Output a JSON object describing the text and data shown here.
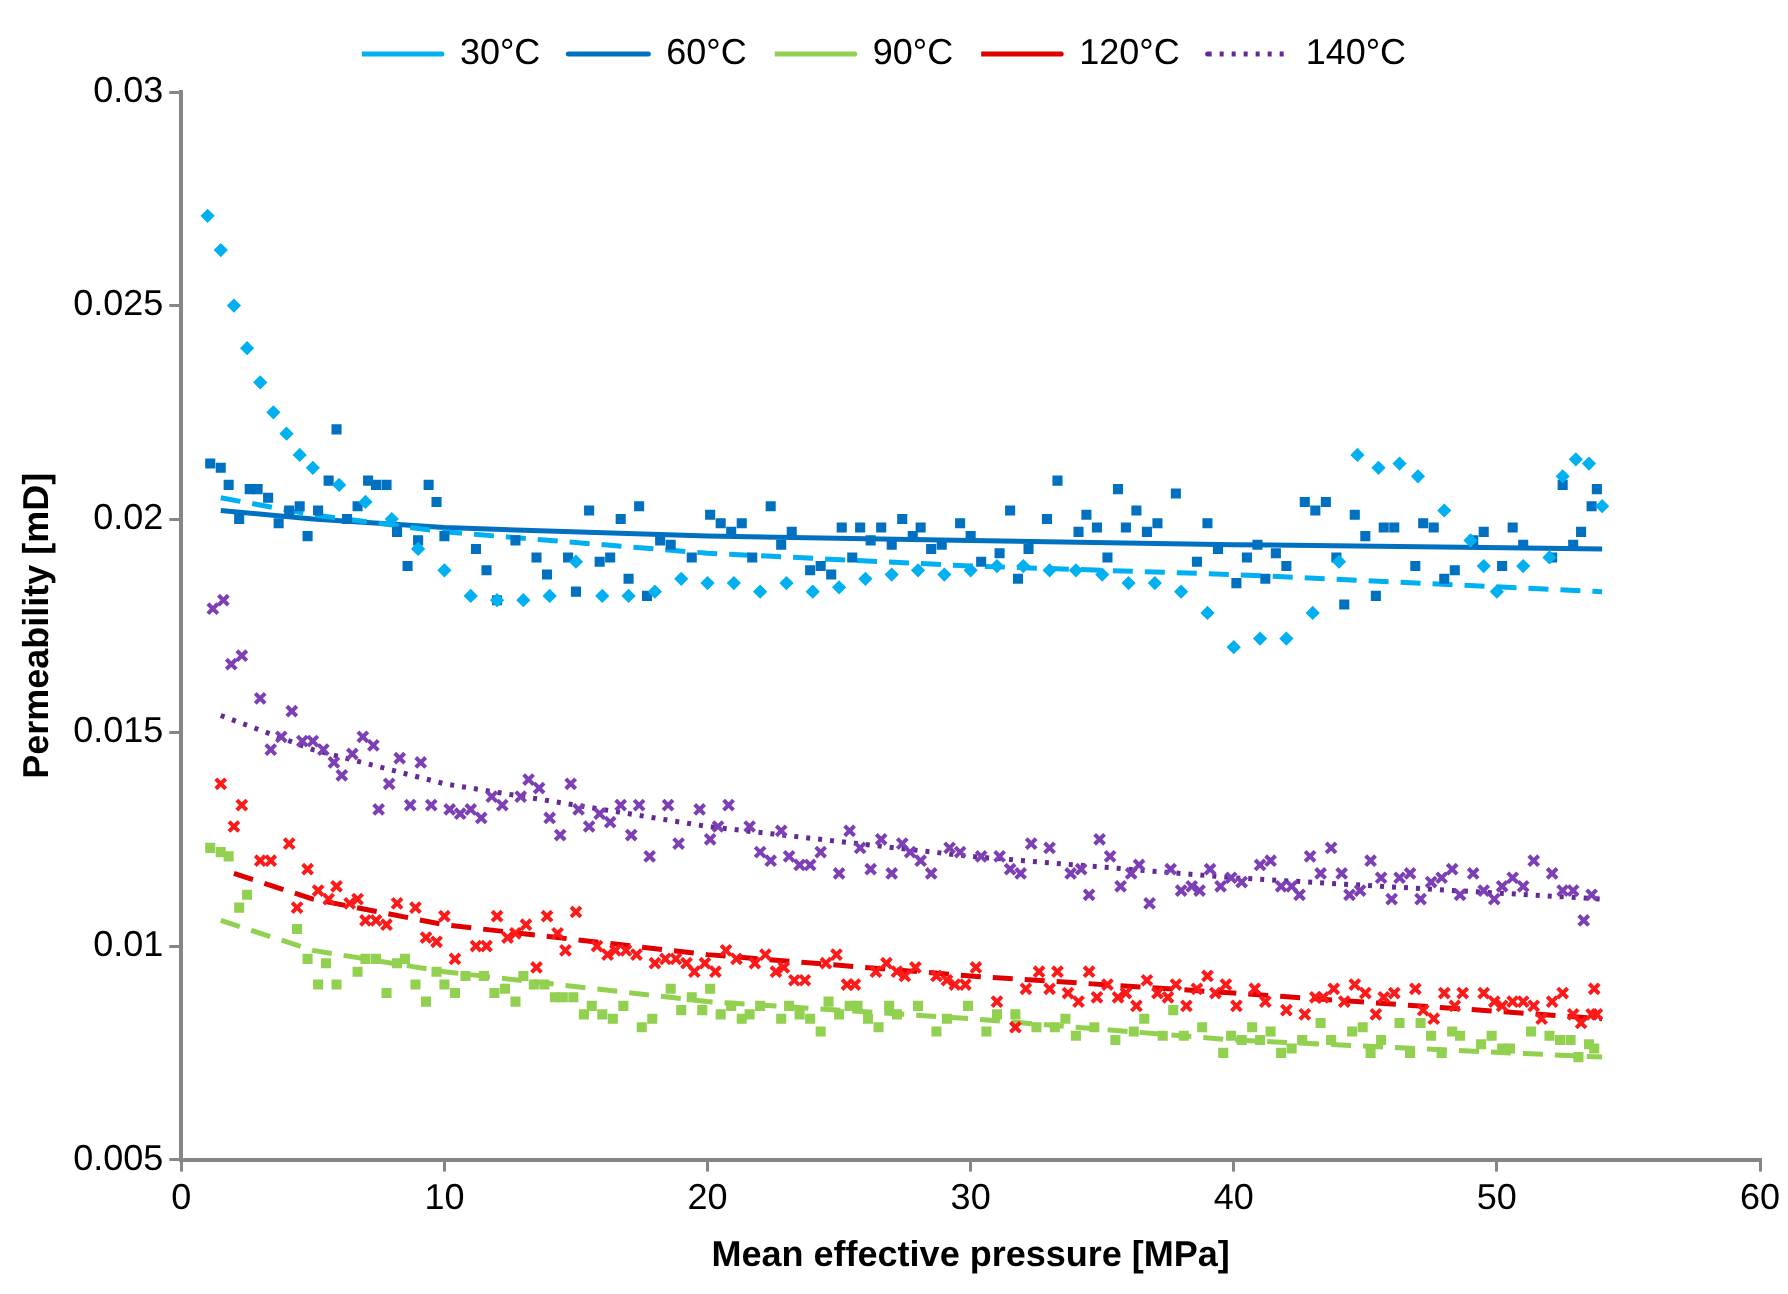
{
  "chart_data": {
    "type": "scatter",
    "xlabel": "Mean effective pressure [MPa]",
    "ylabel": "Permeability [mD]",
    "xlim": [
      0,
      60
    ],
    "xticks": [
      0,
      10,
      20,
      30,
      40,
      50,
      60
    ],
    "ylim": [
      0.005,
      0.03
    ],
    "yticks": [
      0.005,
      0.01,
      0.015,
      0.02,
      0.025,
      0.03
    ],
    "legend": "top",
    "series": [
      {
        "type": "scatter",
        "color": "#00b0f0",
        "marker": "diamond",
        "x": [
          1,
          1.5,
          2,
          2.5,
          3,
          3.5,
          4,
          4.5,
          5,
          6,
          7,
          8,
          9,
          10,
          11,
          12,
          13,
          14,
          15,
          16,
          17,
          18,
          19,
          20,
          21,
          22,
          23,
          24,
          25,
          26,
          27,
          28,
          29,
          30,
          31,
          32,
          33,
          34,
          35,
          36,
          37,
          38,
          39,
          40,
          41,
          42,
          43,
          44,
          44.7,
          45.5,
          46.3,
          47,
          48,
          49,
          49.5,
          50,
          51,
          52,
          52.5,
          53,
          53.5,
          54
        ],
        "values": [
          0.0271,
          0.0263,
          0.025,
          0.024,
          0.0232,
          0.0225,
          0.022,
          0.0215,
          0.0212,
          0.0208,
          0.0204,
          0.02,
          0.0193,
          0.0188,
          0.0182,
          0.0181,
          0.0181,
          0.0182,
          0.019,
          0.0182,
          0.0182,
          0.0183,
          0.0186,
          0.0185,
          0.0185,
          0.0183,
          0.0185,
          0.0183,
          0.0184,
          0.0186,
          0.0187,
          0.0188,
          0.0187,
          0.0188,
          0.0189,
          0.0189,
          0.0188,
          0.0188,
          0.0187,
          0.0185,
          0.0185,
          0.0183,
          0.0178,
          0.017,
          0.0172,
          0.0172,
          0.0178,
          0.019,
          0.0215,
          0.0212,
          0.0213,
          0.021,
          0.0202,
          0.0195,
          0.0189,
          0.0183,
          0.0189,
          0.0191,
          0.021,
          0.0214,
          0.0213,
          0.0203
        ]
      },
      {
        "type": "scatter",
        "color": "#0070c0",
        "marker": "square",
        "x": [
          1.1,
          1.5,
          1.8,
          2.2,
          2.6,
          2.9,
          3.3,
          3.7,
          4.1,
          4.5,
          4.8,
          5.2,
          5.6,
          5.9,
          6.3,
          6.7,
          7.1,
          7.4,
          7.8,
          8.2,
          8.6,
          9,
          9.4,
          9.7,
          10,
          11.2,
          11.6,
          12,
          12.7,
          13.5,
          13.9,
          14.7,
          15,
          15.5,
          15.9,
          16.3,
          16.7,
          17,
          17.4,
          17.7,
          18.2,
          18.6,
          19.4,
          20.1,
          20.5,
          20.9,
          21.3,
          21.7,
          22.4,
          22.8,
          23.2,
          23.9,
          24.3,
          24.7,
          25.1,
          25.5,
          25.8,
          26.2,
          26.6,
          27,
          27.4,
          27.8,
          28.1,
          28.5,
          28.9,
          29.6,
          30,
          30.4,
          31.1,
          31.5,
          31.8,
          32.2,
          32.9,
          33.3,
          34.1,
          34.4,
          34.8,
          35.2,
          35.6,
          35.9,
          36.3,
          36.7,
          37.1,
          37.8,
          38.6,
          39,
          39.4,
          40.1,
          40.5,
          40.9,
          41.2,
          41.6,
          42,
          42.7,
          43.1,
          43.5,
          43.9,
          44.2,
          44.6,
          45,
          45.4,
          45.7,
          46.1,
          46.9,
          47.2,
          47.6,
          48,
          48.4,
          49.1,
          49.5,
          50.2,
          50.6,
          51,
          52.1,
          52.5,
          52.9,
          53.2,
          53.6,
          53.8
        ],
        "values": [
          0.0213,
          0.0212,
          0.0208,
          0.02,
          0.0207,
          0.0207,
          0.0205,
          0.0199,
          0.0202,
          0.0203,
          0.0196,
          0.0202,
          0.0209,
          0.0221,
          0.02,
          0.0203,
          0.0209,
          0.0208,
          0.0208,
          0.0197,
          0.0189,
          0.0195,
          0.0208,
          0.0204,
          0.0196,
          0.0193,
          0.0188,
          0.0181,
          0.0195,
          0.0191,
          0.0187,
          0.0191,
          0.0183,
          0.0202,
          0.019,
          0.0191,
          0.02,
          0.0186,
          0.0203,
          0.0182,
          0.0195,
          0.0194,
          0.0191,
          0.0201,
          0.0199,
          0.0197,
          0.0199,
          0.0191,
          0.0203,
          0.0194,
          0.0197,
          0.0188,
          0.0189,
          0.0187,
          0.0198,
          0.0191,
          0.0198,
          0.0195,
          0.0198,
          0.0194,
          0.02,
          0.0196,
          0.0198,
          0.0193,
          0.0194,
          0.0199,
          0.0196,
          0.019,
          0.0192,
          0.0202,
          0.0186,
          0.0193,
          0.02,
          0.0209,
          0.0197,
          0.0201,
          0.0198,
          0.0191,
          0.0207,
          0.0198,
          0.0202,
          0.0197,
          0.0199,
          0.0206,
          0.019,
          0.0199,
          0.0193,
          0.0185,
          0.0191,
          0.0194,
          0.0186,
          0.0192,
          0.0189,
          0.0204,
          0.0202,
          0.0204,
          0.0191,
          0.018,
          0.0201,
          0.0196,
          0.0182,
          0.0198,
          0.0198,
          0.0189,
          0.0199,
          0.0198,
          0.0186,
          0.0188,
          0.0195,
          0.0197,
          0.0189,
          0.0198,
          0.0194,
          0.0191,
          0.0208,
          0.0194,
          0.0197,
          0.0203,
          0.0207
        ]
      },
      {
        "type": "scatter",
        "color": "#92d050",
        "marker": "square",
        "x": [
          1.1,
          1.5,
          1.8,
          2.2,
          2.5,
          4.4,
          4.8,
          5.2,
          5.5,
          5.9,
          6.7,
          7,
          7.4,
          7.8,
          8.2,
          8.5,
          8.9,
          9.3,
          9.7,
          10,
          10.4,
          10.8,
          11.5,
          11.9,
          12.3,
          12.7,
          13,
          13.4,
          13.8,
          14.2,
          14.5,
          14.9,
          15.3,
          15.6,
          16,
          16.4,
          16.8,
          17.5,
          17.9,
          18.6,
          19,
          19.4,
          19.8,
          20.1,
          20.5,
          20.9,
          21.3,
          21.6,
          22,
          22.8,
          23.1,
          23.5,
          23.9,
          24.3,
          24.6,
          25,
          25.4,
          25.7,
          26.1,
          26.5,
          26.9,
          27.2,
          28,
          28.7,
          29.1,
          29.9,
          30.6,
          31,
          31.7,
          32.5,
          33.2,
          33.6,
          34,
          34.7,
          35.5,
          36.2,
          36.6,
          37.3,
          37.7,
          38.1,
          38.8,
          39.6,
          39.9,
          40.3,
          40.7,
          41,
          41.4,
          41.8,
          42.2,
          42.6,
          43.3,
          43.7,
          44.5,
          44.9,
          45.2,
          45.6,
          46.3,
          46.7,
          47.1,
          47.5,
          47.9,
          48.3,
          48.6,
          49.4,
          49.8,
          50.2,
          50.5,
          51.3,
          52,
          52.4,
          52.8,
          53.1,
          53.5,
          53.7
        ],
        "values": [
          0.0123,
          0.0122,
          0.0121,
          0.0109,
          0.0112,
          0.0104,
          0.0097,
          0.0091,
          0.0096,
          0.0091,
          0.0094,
          0.0097,
          0.0097,
          0.0089,
          0.0096,
          0.0097,
          0.0091,
          0.0087,
          0.0094,
          0.0091,
          0.0089,
          0.0093,
          0.0093,
          0.0089,
          0.009,
          0.0087,
          0.0093,
          0.0091,
          0.0091,
          0.0088,
          0.0088,
          0.0088,
          0.0084,
          0.0086,
          0.0084,
          0.0083,
          0.0086,
          0.0081,
          0.0083,
          0.009,
          0.0085,
          0.0088,
          0.0085,
          0.009,
          0.0084,
          0.0086,
          0.0083,
          0.0084,
          0.0086,
          0.0083,
          0.0086,
          0.0084,
          0.0083,
          0.008,
          0.0087,
          0.0084,
          0.0086,
          0.0086,
          0.0083,
          0.0081,
          0.0086,
          0.0084,
          0.0086,
          0.008,
          0.0083,
          0.0086,
          0.008,
          0.0084,
          0.0084,
          0.0081,
          0.0081,
          0.0083,
          0.0079,
          0.0081,
          0.0078,
          0.008,
          0.0083,
          0.0079,
          0.0085,
          0.0079,
          0.0081,
          0.0075,
          0.0079,
          0.0078,
          0.0081,
          0.0078,
          0.008,
          0.0075,
          0.0076,
          0.0078,
          0.0082,
          0.0078,
          0.008,
          0.0081,
          0.0075,
          0.0078,
          0.0082,
          0.0075,
          0.0082,
          0.0079,
          0.0075,
          0.008,
          0.0079,
          0.0077,
          0.0079,
          0.0076,
          0.0076,
          0.008,
          0.0079,
          0.0078,
          0.0078,
          0.0074,
          0.0077,
          0.0076
        ]
      },
      {
        "type": "scatter",
        "color": "#ff1a1a",
        "marker": "cross",
        "x": [
          1.5,
          2,
          2.3,
          3,
          3.4,
          4.1,
          4.4,
          4.8,
          5.2,
          5.6,
          5.9,
          6.4,
          6.7,
          7,
          7.4,
          7.8,
          8.2,
          8.9,
          9.3,
          9.7,
          10,
          10.4,
          11.2,
          11.6,
          12,
          12.4,
          12.7,
          13.1,
          13.5,
          13.9,
          14.3,
          14.6,
          15,
          15.8,
          16.2,
          16.5,
          16.9,
          17.3,
          18,
          18.4,
          18.8,
          19.2,
          19.5,
          19.9,
          20.3,
          20.7,
          21.1,
          21.8,
          22.2,
          22.6,
          22.9,
          23.3,
          23.7,
          24.5,
          24.9,
          25.3,
          25.6,
          26.4,
          26.8,
          27.2,
          27.5,
          27.9,
          28.7,
          29.1,
          29.4,
          29.8,
          30.2,
          31,
          31.7,
          32.1,
          32.6,
          33,
          33.3,
          33.7,
          34.1,
          34.5,
          34.8,
          35.2,
          35.6,
          35.9,
          36.3,
          36.7,
          37.1,
          37.5,
          37.8,
          38.2,
          38.6,
          39,
          39.3,
          39.7,
          40.1,
          40.8,
          41.2,
          42,
          42.7,
          43.1,
          43.4,
          43.8,
          44.2,
          44.6,
          45,
          45.4,
          45.7,
          46.1,
          46.9,
          47.2,
          47.6,
          48,
          48.4,
          48.7,
          49.5,
          49.9,
          50.2,
          50.6,
          51,
          51.4,
          51.7,
          52.1,
          52.5,
          52.9,
          53.2,
          53.6,
          53.7,
          53.8
        ],
        "values": [
          0.0138,
          0.0128,
          0.0133,
          0.012,
          0.012,
          0.0124,
          0.0109,
          0.0118,
          0.0113,
          0.0111,
          0.0114,
          0.011,
          0.0111,
          0.0106,
          0.0106,
          0.0105,
          0.011,
          0.0109,
          0.0102,
          0.0101,
          0.0107,
          0.0097,
          0.01,
          0.01,
          0.0107,
          0.0102,
          0.0103,
          0.0105,
          0.0095,
          0.0107,
          0.0103,
          0.0099,
          0.0108,
          0.01,
          0.0098,
          0.0099,
          0.0099,
          0.0098,
          0.0096,
          0.0097,
          0.0097,
          0.0096,
          0.0094,
          0.0096,
          0.0094,
          0.0099,
          0.0097,
          0.0096,
          0.0098,
          0.0094,
          0.0095,
          0.0092,
          0.0092,
          0.0096,
          0.0098,
          0.0091,
          0.0091,
          0.0094,
          0.0096,
          0.0094,
          0.0093,
          0.0095,
          0.0093,
          0.0092,
          0.0091,
          0.0091,
          0.0095,
          0.0087,
          0.0081,
          0.009,
          0.0094,
          0.009,
          0.0094,
          0.0089,
          0.0087,
          0.0094,
          0.0088,
          0.0091,
          0.0088,
          0.0089,
          0.0086,
          0.0092,
          0.0089,
          0.0088,
          0.0091,
          0.0086,
          0.009,
          0.0093,
          0.0089,
          0.0091,
          0.0086,
          0.009,
          0.0087,
          0.0085,
          0.0084,
          0.0088,
          0.0088,
          0.009,
          0.0087,
          0.0091,
          0.0089,
          0.0084,
          0.0088,
          0.0089,
          0.009,
          0.0085,
          0.0083,
          0.0089,
          0.0086,
          0.0089,
          0.0089,
          0.0087,
          0.0086,
          0.0087,
          0.0087,
          0.0086,
          0.0083,
          0.0087,
          0.0089,
          0.0084,
          0.0082,
          0.0084,
          0.009,
          0.0084
        ]
      },
      {
        "type": "scatter",
        "color": "#7d3fb5",
        "marker": "cross",
        "x": [
          1.2,
          1.6,
          1.9,
          2.3,
          3,
          3.4,
          3.8,
          4.2,
          4.6,
          5,
          5.4,
          5.8,
          6.1,
          6.5,
          6.9,
          7.3,
          7.5,
          7.9,
          8.3,
          8.7,
          9.1,
          9.5,
          10.2,
          10.6,
          11,
          11.4,
          11.8,
          12.2,
          12.9,
          13.2,
          13.6,
          14,
          14.4,
          14.8,
          15.1,
          15.5,
          15.9,
          16.3,
          16.7,
          17.1,
          17.4,
          17.8,
          18.5,
          18.9,
          19.7,
          20.1,
          20.4,
          20.8,
          21.6,
          22,
          22.4,
          22.8,
          23.1,
          23.5,
          23.9,
          24.3,
          25,
          25.4,
          25.8,
          26.2,
          26.6,
          27,
          27.4,
          27.7,
          28.1,
          28.5,
          29.2,
          29.6,
          30.4,
          31.1,
          31.5,
          31.9,
          32.3,
          33,
          33.8,
          34.2,
          34.5,
          34.9,
          35.3,
          35.7,
          36.1,
          36.4,
          36.8,
          37.6,
          38,
          38.4,
          38.7,
          39.1,
          39.5,
          39.9,
          40.3,
          41,
          41.4,
          41.8,
          42.2,
          42.5,
          42.9,
          43.3,
          43.7,
          44.1,
          44.4,
          44.8,
          45.2,
          45.6,
          46,
          46.3,
          46.7,
          47.1,
          47.5,
          47.9,
          48.3,
          48.6,
          49.1,
          49.5,
          49.9,
          50.2,
          50.6,
          51,
          51.4,
          52.1,
          52.5,
          52.9,
          53.3,
          53.6
        ],
        "values": [
          0.0179,
          0.0181,
          0.0166,
          0.0168,
          0.0158,
          0.0146,
          0.0149,
          0.0155,
          0.0148,
          0.0148,
          0.0146,
          0.0143,
          0.014,
          0.0145,
          0.0149,
          0.0147,
          0.0132,
          0.0138,
          0.0144,
          0.0133,
          0.0143,
          0.0133,
          0.0132,
          0.0131,
          0.0132,
          0.013,
          0.0135,
          0.0133,
          0.0135,
          0.0139,
          0.0137,
          0.013,
          0.0126,
          0.0138,
          0.0132,
          0.0128,
          0.0131,
          0.0129,
          0.0133,
          0.0126,
          0.0133,
          0.0121,
          0.0133,
          0.0124,
          0.0132,
          0.0125,
          0.0128,
          0.0133,
          0.0128,
          0.0122,
          0.012,
          0.0127,
          0.0121,
          0.0119,
          0.0119,
          0.0122,
          0.0117,
          0.0127,
          0.0123,
          0.0118,
          0.0125,
          0.0117,
          0.0124,
          0.0122,
          0.012,
          0.0117,
          0.0123,
          0.0122,
          0.0121,
          0.0121,
          0.0118,
          0.0117,
          0.0124,
          0.0123,
          0.0117,
          0.0118,
          0.0112,
          0.0125,
          0.0121,
          0.0114,
          0.0117,
          0.0119,
          0.011,
          0.0118,
          0.0113,
          0.0114,
          0.0113,
          0.0118,
          0.0114,
          0.0116,
          0.0115,
          0.0119,
          0.012,
          0.0114,
          0.0114,
          0.0112,
          0.0121,
          0.0117,
          0.0123,
          0.0117,
          0.0112,
          0.0113,
          0.012,
          0.0116,
          0.0111,
          0.0116,
          0.0117,
          0.0111,
          0.0115,
          0.0116,
          0.0118,
          0.0112,
          0.0117,
          0.0113,
          0.0111,
          0.0114,
          0.0116,
          0.0114,
          0.012,
          0.0117,
          0.0113,
          0.0113,
          0.0106,
          0.0112
        ]
      },
      {
        "type": "line",
        "name": "30°C",
        "color": "#00b0f0",
        "marker": "none",
        "line_style": "dashed",
        "x": [
          1.5,
          5,
          10,
          20,
          30,
          40,
          54
        ],
        "values": [
          0.0205,
          0.0201,
          0.0197,
          0.0192,
          0.0189,
          0.0187,
          0.0183
        ]
      },
      {
        "type": "line",
        "name": "60°C",
        "color": "#0070c0",
        "marker": "none",
        "line_style": "solid",
        "x": [
          1.5,
          5,
          10,
          20,
          30,
          40,
          54
        ],
        "values": [
          0.0202,
          0.02,
          0.0198,
          0.0196,
          0.0195,
          0.0194,
          0.0193
        ]
      },
      {
        "type": "line",
        "name": "90°C",
        "color": "#92d050",
        "marker": "none",
        "line_style": "dashed",
        "x": [
          1.5,
          5,
          10,
          20,
          30,
          40,
          54
        ],
        "values": [
          0.0106,
          0.0099,
          0.0094,
          0.0087,
          0.0083,
          0.0078,
          0.0074
        ]
      },
      {
        "type": "line",
        "name": "120°C",
        "color": "#e00000",
        "marker": "none",
        "line_style": "dashed",
        "x": [
          2,
          5,
          10,
          20,
          30,
          40,
          54
        ],
        "values": [
          0.0117,
          0.0111,
          0.0105,
          0.0098,
          0.0093,
          0.0089,
          0.0083
        ]
      },
      {
        "type": "line",
        "name": "140°C",
        "color": "#652a92",
        "marker": "none",
        "line_style": "dotted",
        "x": [
          1.5,
          5,
          10,
          20,
          30,
          40,
          54
        ],
        "values": [
          0.0154,
          0.0146,
          0.0138,
          0.0128,
          0.0121,
          0.0116,
          0.0111
        ]
      }
    ]
  }
}
